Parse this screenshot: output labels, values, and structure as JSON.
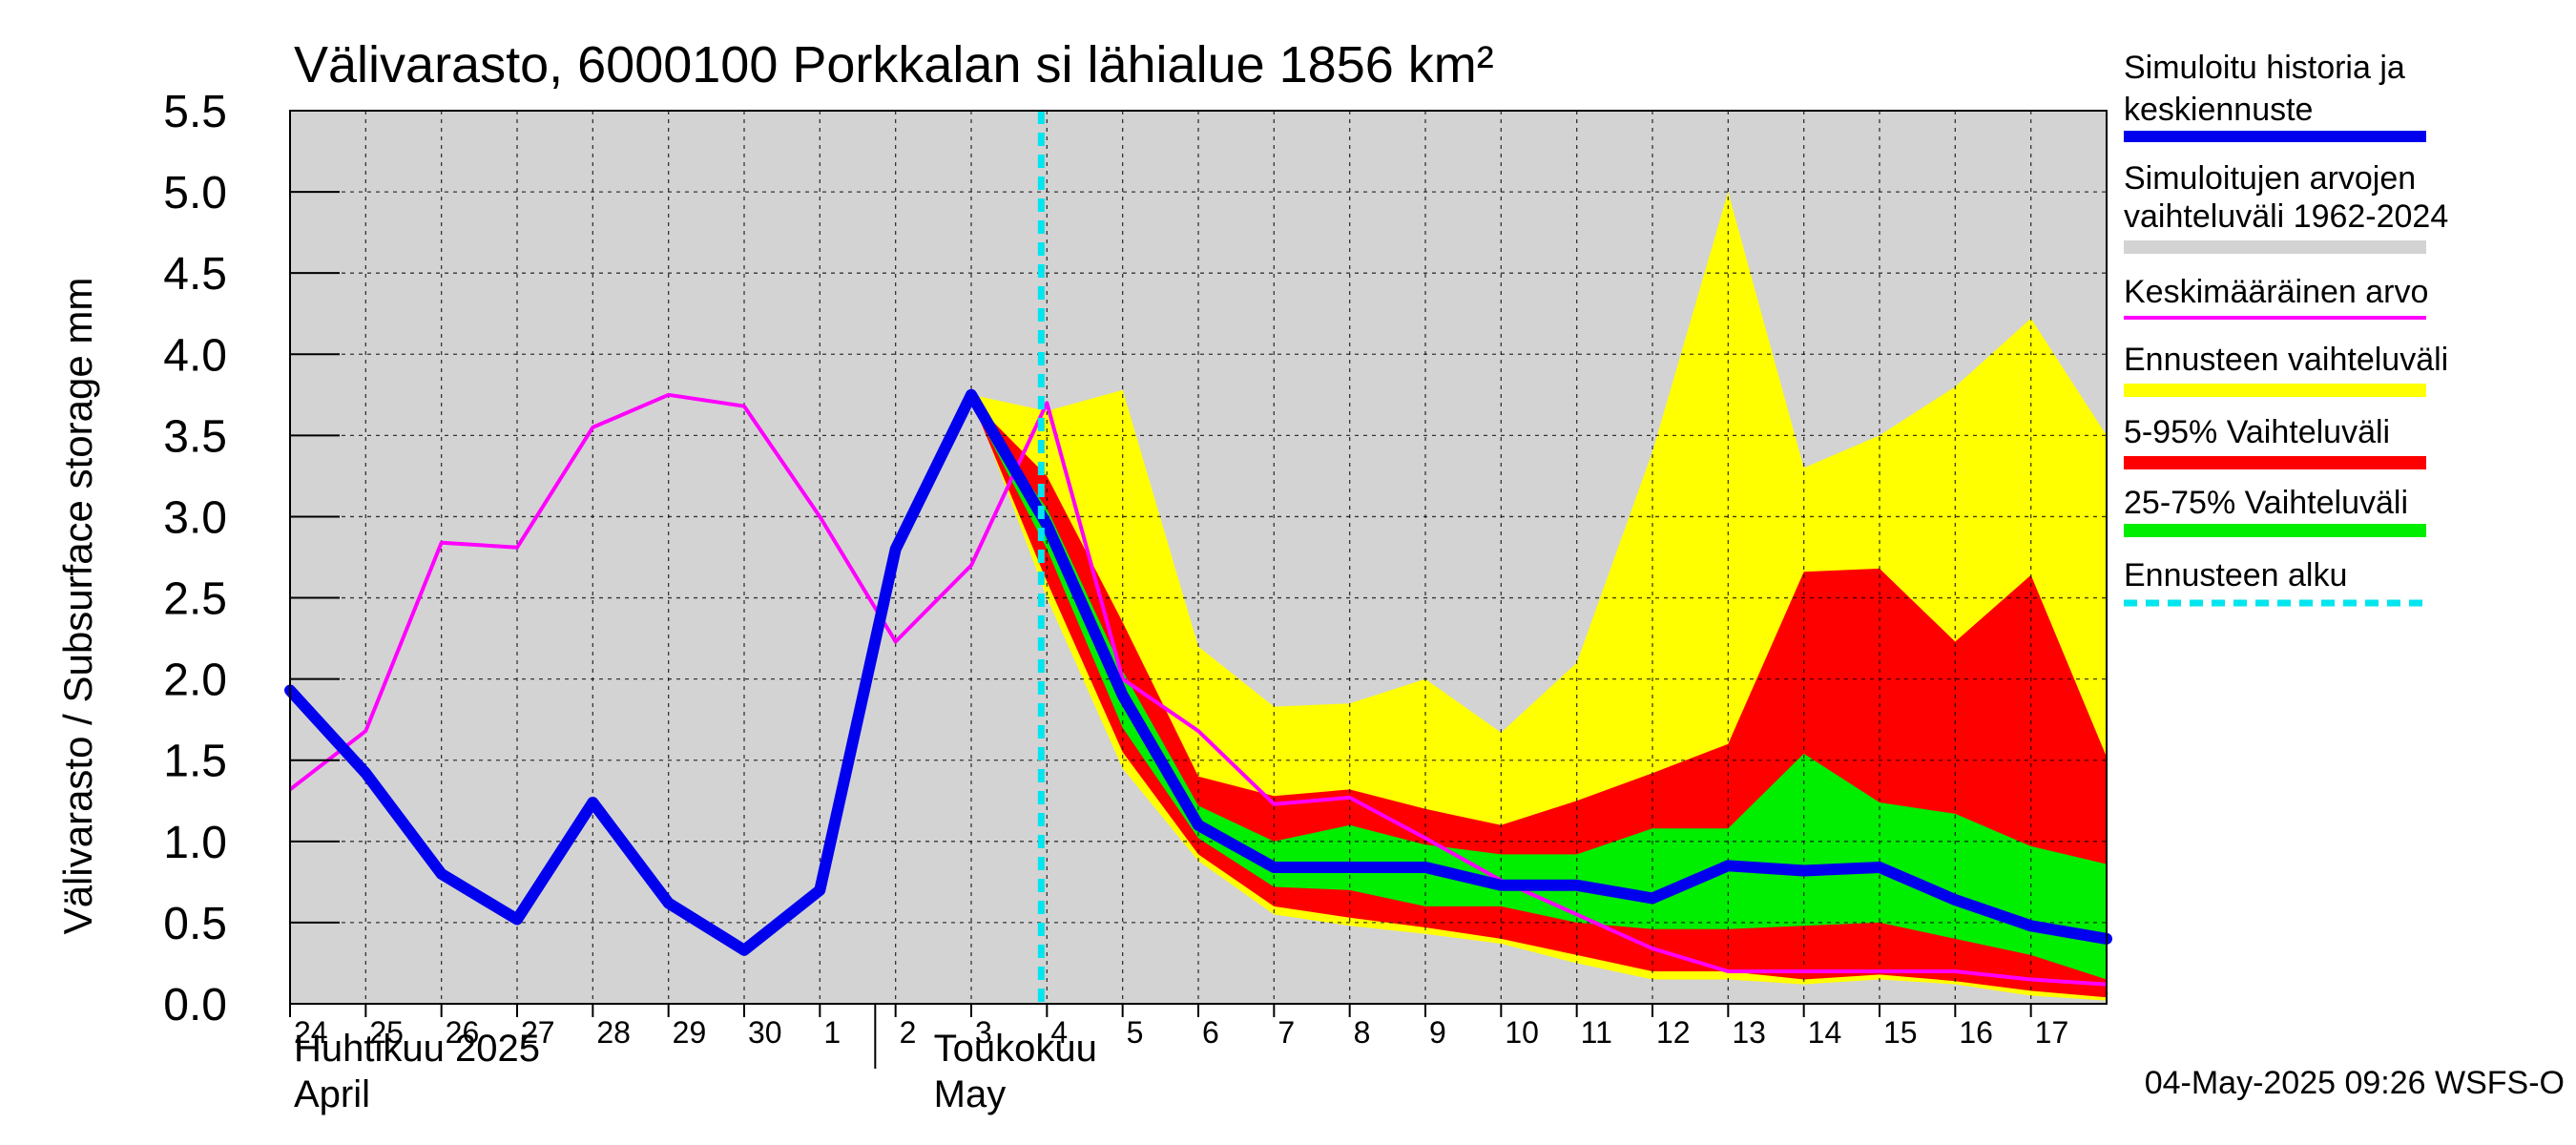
{
  "chart_data": {
    "type": "area",
    "title": "Välivarasto, 6000100 Porkkalan si lähialue 1856 km²",
    "ylabel": "Välivarasto / Subsurface storage  mm",
    "ylim": [
      0,
      5.5
    ],
    "yticks": [
      0.0,
      0.5,
      1.0,
      1.5,
      2.0,
      2.5,
      3.0,
      3.5,
      4.0,
      4.5,
      5.0,
      5.5
    ],
    "ytick_labels": [
      "0.0",
      "0.5",
      "1.0",
      "1.5",
      "2.0",
      "2.5",
      "3.0",
      "3.5",
      "4.0",
      "4.5",
      "5.0",
      "5.5"
    ],
    "xlim": [
      0,
      24
    ],
    "day_labels": [
      "24",
      "25",
      "26",
      "27",
      "28",
      "29",
      "30",
      "1",
      "2",
      "3",
      "4",
      "5",
      "6",
      "7",
      "8",
      "9",
      "10",
      "11",
      "12",
      "13",
      "14",
      "15",
      "16",
      "17"
    ],
    "month_labels": [
      {
        "fi": "Huhtikuu  2025",
        "en": "April",
        "x": 0
      },
      {
        "fi": "Toukokuu",
        "en": "May",
        "x": 8
      }
    ],
    "month_divider_x": 7,
    "forecast_start_x": 10,
    "footer": "04-May-2025 09:26 WSFS-O",
    "grid": true,
    "colors": {
      "background_range": "#d3d3d3",
      "forecast_range": "#ffff00",
      "p5_95": "#ff0000",
      "p25_75": "#00ee00",
      "history": "#0000ee",
      "mean": "#ff00ff",
      "forecast_start": "#00e5ee"
    },
    "bands": {
      "simulated_range_1962_2024": {
        "x": [
          0,
          24
        ],
        "low": [
          0.0,
          0.0
        ],
        "high": [
          5.5,
          5.5
        ]
      },
      "ennusteen_vaihteluvali": {
        "x": [
          9,
          10,
          11,
          12,
          13,
          14,
          15,
          16,
          17,
          18,
          19,
          20,
          21,
          22,
          23,
          24
        ],
        "high": [
          3.75,
          3.65,
          3.78,
          2.2,
          1.83,
          1.85,
          2.0,
          1.67,
          2.1,
          3.4,
          5.0,
          3.3,
          3.5,
          3.8,
          4.22,
          3.5
        ],
        "low": [
          3.75,
          2.5,
          1.45,
          0.88,
          0.55,
          0.48,
          0.43,
          0.37,
          0.25,
          0.15,
          0.15,
          0.12,
          0.15,
          0.12,
          0.05,
          0.02
        ]
      },
      "p5_95": {
        "x": [
          9,
          10,
          11,
          12,
          13,
          14,
          15,
          16,
          17,
          18,
          19,
          20,
          21,
          22,
          23,
          24
        ],
        "high": [
          3.72,
          3.25,
          2.35,
          1.4,
          1.28,
          1.32,
          1.2,
          1.1,
          1.25,
          1.42,
          1.6,
          2.66,
          2.68,
          2.23,
          2.64,
          1.52
        ],
        "low": [
          3.72,
          2.6,
          1.55,
          0.92,
          0.6,
          0.53,
          0.47,
          0.4,
          0.3,
          0.2,
          0.2,
          0.15,
          0.18,
          0.14,
          0.08,
          0.04
        ]
      },
      "p25_75": {
        "x": [
          9,
          10,
          11,
          12,
          13,
          14,
          15,
          16,
          17,
          18,
          19,
          20,
          21,
          22,
          23,
          24
        ],
        "high": [
          3.7,
          3.05,
          2.05,
          1.22,
          1.0,
          1.1,
          0.98,
          0.92,
          0.92,
          1.08,
          1.08,
          1.54,
          1.24,
          1.17,
          0.97,
          0.86
        ],
        "low": [
          3.7,
          2.8,
          1.7,
          1.02,
          0.72,
          0.7,
          0.6,
          0.6,
          0.5,
          0.46,
          0.46,
          0.48,
          0.5,
          0.4,
          0.3,
          0.15
        ]
      }
    },
    "series": [
      {
        "name": "Simuloitu historia ja keskiennuste",
        "x": [
          0,
          1,
          2,
          3,
          4,
          5,
          6,
          7,
          8,
          9,
          10,
          11,
          12,
          13,
          14,
          15,
          16,
          17,
          18,
          19,
          20,
          21,
          22,
          23,
          24
        ],
        "values": [
          1.93,
          1.42,
          0.8,
          0.52,
          1.24,
          0.62,
          0.33,
          0.7,
          2.8,
          3.75,
          2.95,
          1.9,
          1.1,
          0.84,
          0.84,
          0.84,
          0.73,
          0.73,
          0.65,
          0.85,
          0.82,
          0.84,
          0.64,
          0.48,
          0.4
        ]
      },
      {
        "name": "Keskimääräinen arvo",
        "x": [
          0,
          1,
          2,
          3,
          4,
          5,
          6,
          7,
          8,
          9,
          10,
          11,
          12,
          13,
          14,
          15,
          16,
          17,
          18,
          19,
          20,
          21,
          22,
          23,
          24
        ],
        "values": [
          1.32,
          1.68,
          2.84,
          2.81,
          3.55,
          3.75,
          3.68,
          3.0,
          2.23,
          2.7,
          3.7,
          2.0,
          1.68,
          1.23,
          1.27,
          1.02,
          0.76,
          0.55,
          0.34,
          0.2,
          0.2,
          0.2,
          0.2,
          0.15,
          0.12
        ]
      }
    ],
    "legend": {
      "placement": "right",
      "items": [
        {
          "lines": [
            "Simuloitu historia ja",
            "keskiennuste"
          ],
          "style": "history"
        },
        {
          "lines": [
            "Simuloitujen arvojen",
            "vaihteluväli 1962-2024"
          ],
          "style": "background_range"
        },
        {
          "lines": [
            "Keskimääräinen arvo"
          ],
          "style": "mean"
        },
        {
          "lines": [
            "Ennusteen vaihteluväli"
          ],
          "style": "forecast_range"
        },
        {
          "lines": [
            "5-95% Vaihteluväli"
          ],
          "style": "p5_95"
        },
        {
          "lines": [
            "25-75% Vaihteluväli"
          ],
          "style": "p25_75"
        },
        {
          "lines": [
            "Ennusteen alku"
          ],
          "style": "forecast_start"
        }
      ]
    }
  }
}
